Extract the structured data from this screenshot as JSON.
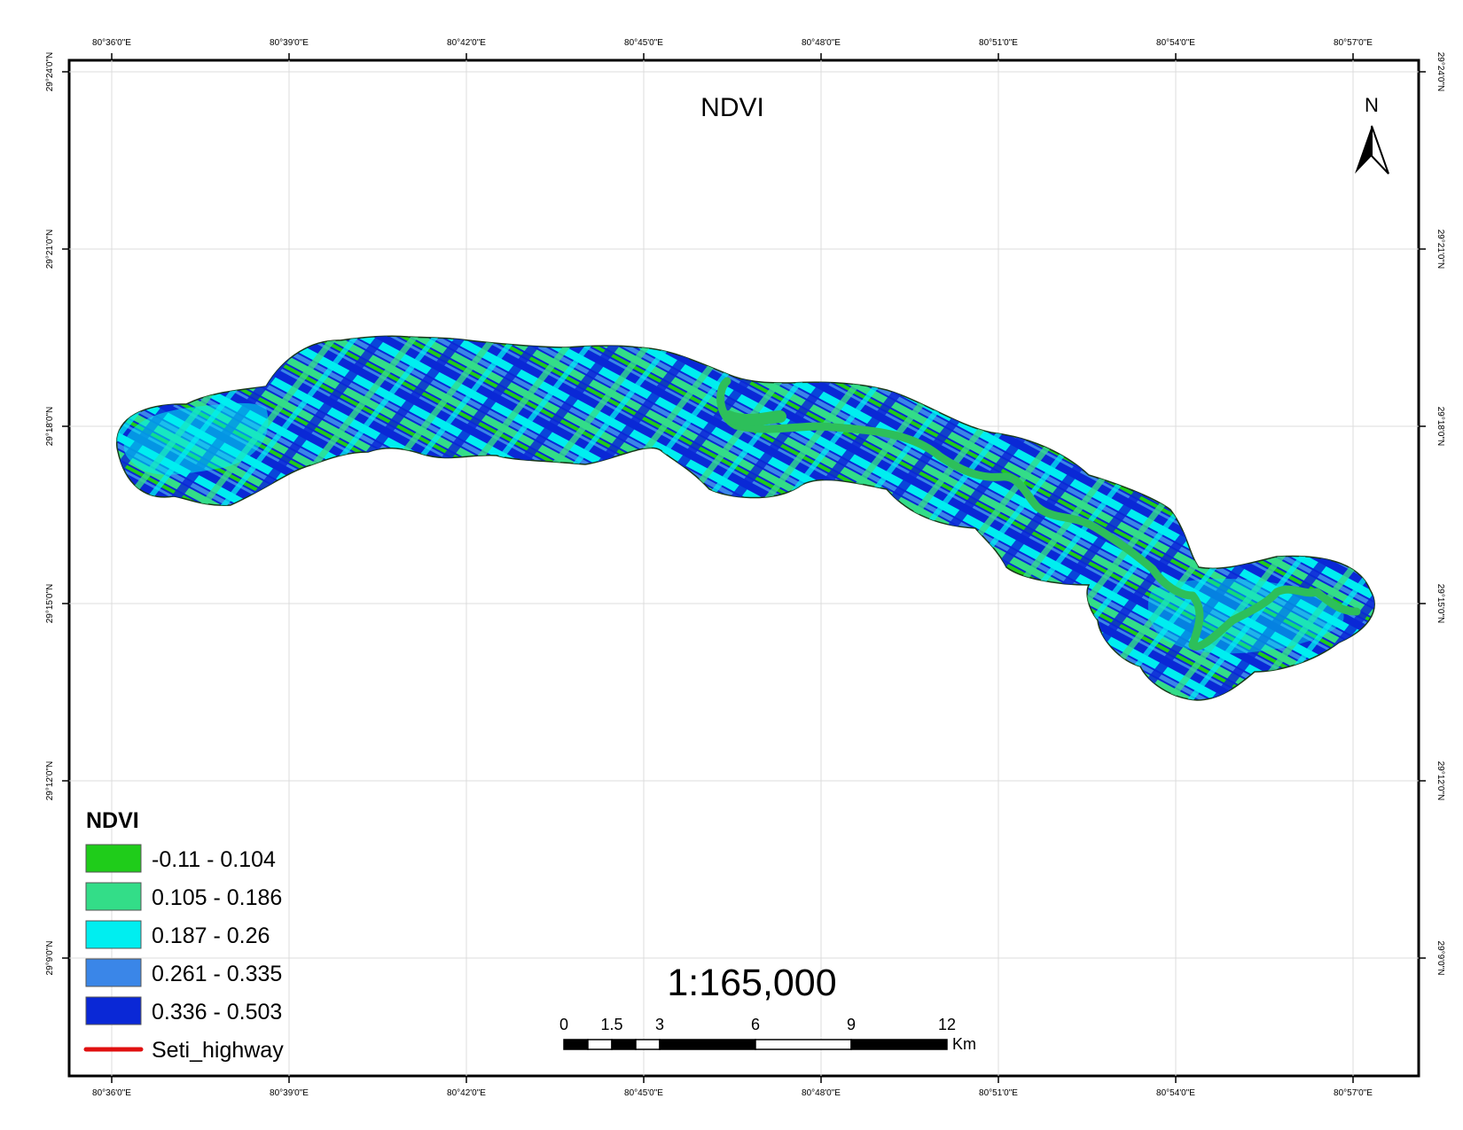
{
  "map": {
    "title": "NDVI",
    "scale_text": "1:165,000",
    "north_label": "N",
    "lon_labels": [
      "80°36'0\"E",
      "80°39'0\"E",
      "80°42'0\"E",
      "80°45'0\"E",
      "80°48'0\"E",
      "80°51'0\"E",
      "80°54'0\"E",
      "80°57'0\"E"
    ],
    "lat_labels": [
      "29°24'0\"N",
      "29°21'0\"N",
      "29°18'0\"N",
      "29°15'0\"N",
      "29°12'0\"N",
      "29°9'0\"N"
    ],
    "scalebar": {
      "ticks": [
        "0",
        "1.5",
        "3",
        "6",
        "9",
        "12"
      ],
      "unit": "Km"
    },
    "legend": {
      "title": "NDVI",
      "classes": [
        {
          "label": "-0.11 - 0.104",
          "color": "#1fcc1a"
        },
        {
          "label": "0.105 - 0.186",
          "color": "#33dd88"
        },
        {
          "label": "0.187 - 0.26",
          "color": "#00eef0"
        },
        {
          "label": "0.261 - 0.335",
          "color": "#3a86e8"
        },
        {
          "label": "0.336 - 0.503",
          "color": "#0a28d6"
        }
      ],
      "line_item": {
        "label": "Seti_highway",
        "color": "#e01010"
      }
    },
    "colors": {
      "river": "#2dbf5a",
      "grid": "#dcdcdc",
      "frame": "#000000"
    }
  }
}
